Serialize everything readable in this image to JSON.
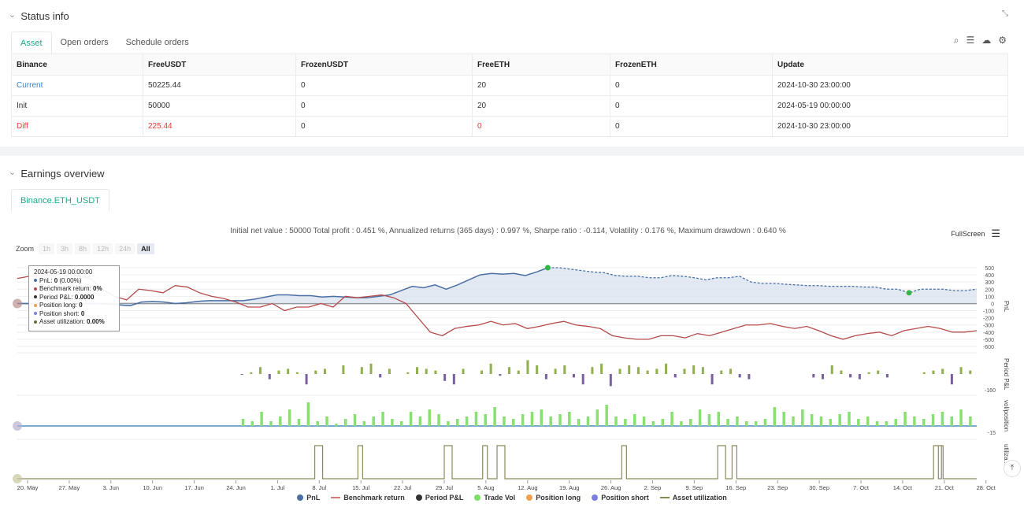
{
  "status": {
    "title": "Status info",
    "tabs": [
      "Asset",
      "Open orders",
      "Schedule orders"
    ],
    "table": {
      "headers": [
        "Binance",
        "FreeUSDT",
        "FrozenUSDT",
        "FreeETH",
        "FrozenETH",
        "Update"
      ],
      "rows": [
        [
          "Current",
          "50225.44",
          "0",
          "20",
          "0",
          "2024-10-30 23:00:00"
        ],
        [
          "Init",
          "50000",
          "0",
          "20",
          "0",
          "2024-05-19 00:00:00"
        ],
        [
          "Diff",
          "225.44",
          "0",
          "0",
          "0",
          "2024-10-30 23:00:00"
        ]
      ]
    },
    "icons": [
      "search-icon",
      "list-icon",
      "cloud-icon",
      "gear-icon"
    ]
  },
  "earnings": {
    "title": "Earnings overview",
    "tab": "Binance.ETH_USDT",
    "summary": "Initial net value : 50000 Total profit : 0.451 %, Annualized returns (365 days) : 0.997 %, Sharpe ratio : -0.114, Volatility : 0.176 %, Maximum drawdown : 0.640 %",
    "fullscreen": "FullScreen",
    "zoom_label": "Zoom",
    "zoom_buttons": [
      "1h",
      "3h",
      "8h",
      "12h",
      "24h",
      "All"
    ],
    "tooltip": {
      "date": "2024-05-19 00:00:00",
      "lines": [
        {
          "label": "PnL: ",
          "value": "0",
          "extra": " (0.00%)",
          "color": "#4a6fa5"
        },
        {
          "label": "Benchmark return: ",
          "value": "0%",
          "extra": "",
          "color": "#b54a4a"
        },
        {
          "label": "Period P&L: ",
          "value": "0.0000",
          "extra": "",
          "color": "#333333"
        },
        {
          "label": "Position long: ",
          "value": "0",
          "extra": "",
          "color": "#f0a050"
        },
        {
          "label": "Position short: ",
          "value": "0",
          "extra": "",
          "color": "#7b7fe0"
        },
        {
          "label": "Asset utilization: ",
          "value": "0.00%",
          "extra": "",
          "color": "#6b6b3a"
        }
      ]
    },
    "legend": [
      {
        "label": "PnL",
        "color": "#4a6fa5",
        "kind": "dot"
      },
      {
        "label": "Benchmark return",
        "color": "#d47a7a",
        "kind": "line"
      },
      {
        "label": "Period P&L",
        "color": "#333333",
        "kind": "dot"
      },
      {
        "label": "Trade Vol",
        "color": "#7ede6a",
        "kind": "dot"
      },
      {
        "label": "Position long",
        "color": "#f0a050",
        "kind": "dot"
      },
      {
        "label": "Position short",
        "color": "#7b7fe0",
        "kind": "dot"
      },
      {
        "label": "Asset utilization",
        "color": "#8a8a5a",
        "kind": "line"
      }
    ],
    "axis_labels": [
      "PnL",
      "Period P&L",
      "vol/position",
      "utiliza..."
    ]
  },
  "chart_data": {
    "type": "line",
    "x_ticks": [
      "20. May",
      "27. May",
      "3. Jun",
      "10. Jun",
      "17. Jun",
      "24. Jun",
      "1. Jul",
      "8. Jul",
      "15. Jul",
      "22. Jul",
      "29. Jul",
      "5. Aug",
      "12. Aug",
      "19. Aug",
      "26. Aug",
      "2. Sep",
      "9. Sep",
      "16. Sep",
      "23. Sep",
      "30. Sep",
      "7. Oct",
      "14. Oct",
      "21. Oct",
      "28. Oct"
    ],
    "pnl_y_ticks": [
      "500",
      "400",
      "300",
      "200",
      "100",
      "0",
      "-100",
      "-200",
      "-300",
      "-400",
      "-500",
      "-600"
    ],
    "pnl_ylim": [
      -600,
      500
    ],
    "period_pl_tick": "-160",
    "vol_tick": "-15",
    "pnl": [
      0,
      0,
      0,
      0,
      0,
      0,
      0,
      0,
      -10,
      -20,
      -30,
      20,
      30,
      20,
      0,
      10,
      30,
      40,
      40,
      40,
      40,
      60,
      90,
      120,
      120,
      110,
      110,
      90,
      100,
      90,
      80,
      80,
      100,
      120,
      180,
      240,
      220,
      260,
      200,
      260,
      330,
      400,
      420,
      410,
      420,
      390,
      440,
      500,
      500,
      480,
      460,
      440,
      430,
      390,
      380,
      380,
      360,
      360,
      390,
      380,
      360,
      330,
      360,
      360,
      380,
      300,
      280,
      280,
      270,
      260,
      250,
      250,
      240,
      240,
      240,
      230,
      230,
      200,
      200,
      150,
      200,
      200,
      200,
      180,
      180,
      200
    ],
    "benchmark": [
      350,
      380,
      390,
      400,
      420,
      380,
      350,
      200,
      100,
      50,
      200,
      180,
      150,
      250,
      230,
      150,
      100,
      70,
      20,
      -50,
      -50,
      0,
      -100,
      -50,
      -50,
      0,
      -50,
      100,
      80,
      100,
      120,
      80,
      0,
      -200,
      -400,
      -450,
      -350,
      -320,
      -300,
      -250,
      -300,
      -280,
      -350,
      -320,
      -280,
      -250,
      -300,
      -320,
      -350,
      -450,
      -480,
      -500,
      -500,
      -450,
      -450,
      -480,
      -420,
      -450,
      -400,
      -350,
      -300,
      -300,
      -280,
      -320,
      -350,
      -320,
      -380,
      -450,
      -500,
      -450,
      -420,
      -400,
      -450,
      -380,
      -350,
      -320,
      -350,
      -400,
      -400,
      -380
    ],
    "period_pl": [
      0,
      0,
      0,
      0,
      0,
      0,
      0,
      0,
      -5,
      10,
      40,
      -30,
      20,
      30,
      10,
      -60,
      20,
      30,
      0,
      50,
      0,
      40,
      60,
      -20,
      30,
      0,
      10,
      40,
      30,
      20,
      -40,
      -60,
      30,
      0,
      20,
      60,
      -10,
      40,
      20,
      80,
      50,
      -30,
      30,
      50,
      -20,
      -60,
      40,
      60,
      -70,
      30,
      50,
      40,
      20,
      30,
      60,
      -20,
      30,
      50,
      40,
      -60,
      20,
      30,
      -20,
      -30,
      0,
      0,
      0,
      0,
      0,
      0,
      -20,
      -30,
      50,
      20,
      -20,
      -30,
      10,
      20,
      -20,
      0,
      0,
      0,
      10,
      20,
      30,
      -60,
      40,
      20
    ],
    "trade_vol": [
      0,
      0,
      0,
      0,
      0,
      0,
      0,
      0,
      30,
      20,
      60,
      20,
      40,
      70,
      30,
      100,
      20,
      40,
      10,
      30,
      50,
      20,
      40,
      60,
      30,
      20,
      60,
      40,
      70,
      50,
      20,
      30,
      40,
      60,
      50,
      80,
      40,
      30,
      50,
      60,
      70,
      40,
      50,
      60,
      30,
      40,
      70,
      90,
      40,
      30,
      50,
      40,
      20,
      30,
      60,
      20,
      30,
      70,
      50,
      60,
      30,
      40,
      20,
      20,
      30,
      80,
      60,
      40,
      70,
      50,
      40,
      30,
      50,
      60,
      30,
      40,
      20,
      20,
      30,
      60,
      40,
      30,
      50,
      60,
      40,
      70,
      40
    ],
    "utilization_spikes_at": [
      0.31,
      0.355,
      0.445,
      0.485,
      0.5,
      0.63,
      0.73,
      0.745,
      0.955,
      0.96
    ]
  }
}
